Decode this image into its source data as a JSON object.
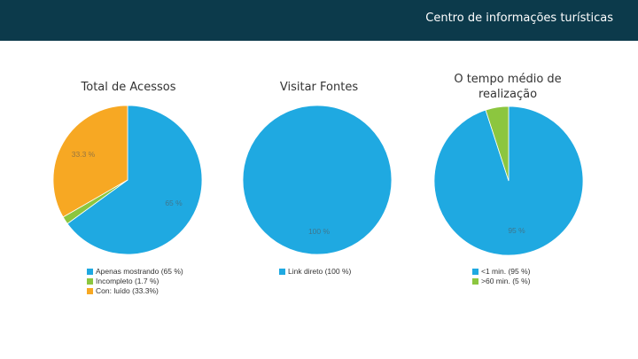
{
  "header": {
    "title": "Centro de informações turísticas",
    "background": "#0c3a4b"
  },
  "chart_data": [
    {
      "type": "pie",
      "title": "Total de Acessos",
      "slices": [
        {
          "label": "Apenas mostrando (65 %)",
          "value": 65,
          "color": "#1fa9e1",
          "data_label": "65 %"
        },
        {
          "label": "Incompleto (1.7 %)",
          "value": 1.7,
          "color": "#8cc63f",
          "data_label": ""
        },
        {
          "label": "Con: luído (33.3%)",
          "value": 33.3,
          "color": "#f7a823",
          "data_label": "33.3 %"
        }
      ]
    },
    {
      "type": "pie",
      "title": "Visitar Fontes",
      "slices": [
        {
          "label": "Link direto (100 %)",
          "value": 100,
          "color": "#1fa9e1",
          "data_label": "100 %"
        }
      ]
    },
    {
      "type": "pie",
      "title": "O tempo médio de realização",
      "slices": [
        {
          "label": "<1 min. (95 %)",
          "value": 95,
          "color": "#1fa9e1",
          "data_label": "95 %"
        },
        {
          "label": ">60 min. (5 %)",
          "value": 5,
          "color": "#8cc63f",
          "data_label": ""
        }
      ]
    }
  ]
}
